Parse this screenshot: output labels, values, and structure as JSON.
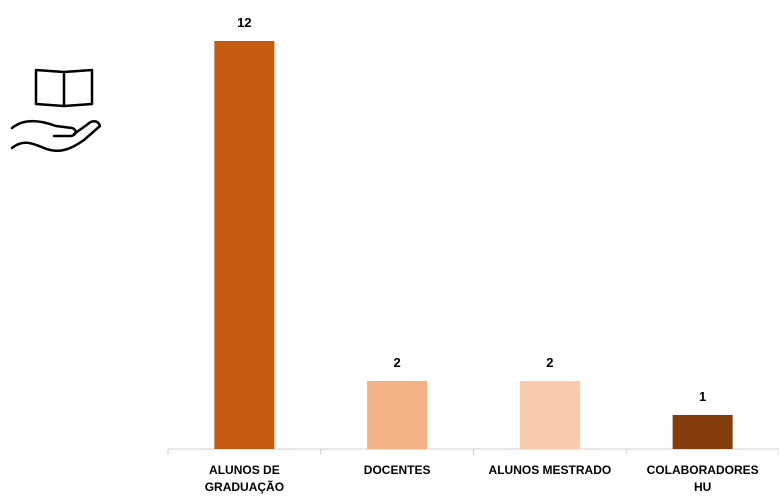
{
  "chart_data": {
    "type": "bar",
    "categories": [
      "ALUNOS DE GRADUAÇÃO",
      "DOCENTES",
      "ALUNOS MESTRADO",
      "COLABORADORES HU"
    ],
    "values": [
      12,
      2,
      2,
      1
    ],
    "colors": [
      "#c55a11",
      "#f4b183",
      "#f8cbad",
      "#843c0c"
    ]
  }
}
